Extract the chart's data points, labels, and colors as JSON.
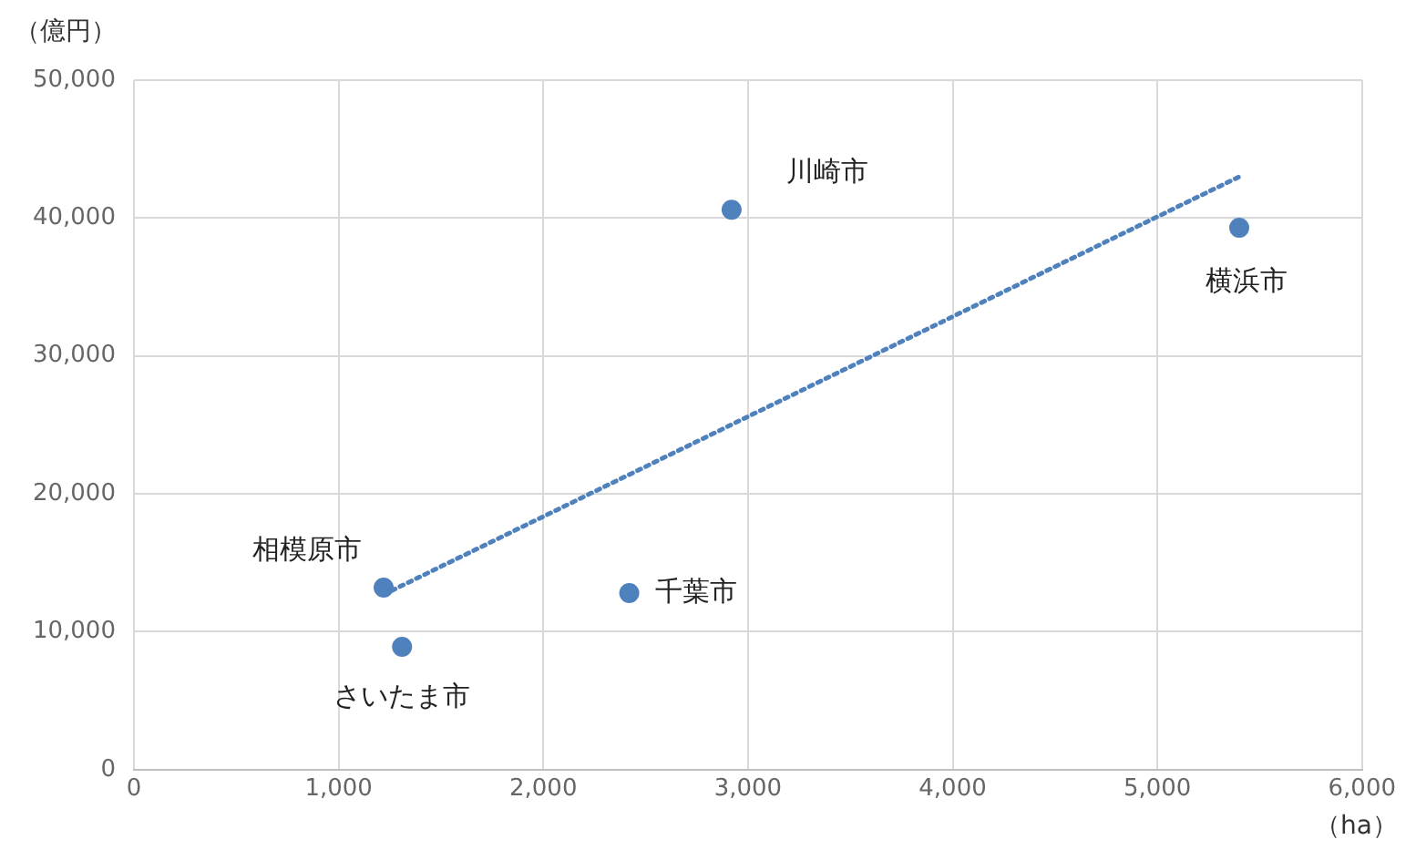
{
  "chart_data": {
    "type": "scatter",
    "xlabel": "（ha）",
    "ylabel": "（億円）",
    "xlim": [
      0,
      6000
    ],
    "xticks": [
      {
        "value": 0,
        "label": "0"
      },
      {
        "value": 1000,
        "label": "1,000"
      },
      {
        "value": 2000,
        "label": "2,000"
      },
      {
        "value": 3000,
        "label": "3,000"
      },
      {
        "value": 4000,
        "label": "4,000"
      },
      {
        "value": 5000,
        "label": "5,000"
      },
      {
        "value": 6000,
        "label": "6,000"
      }
    ],
    "ylim": [
      0,
      50000
    ],
    "yticks": [
      {
        "value": 0,
        "label": "0"
      },
      {
        "value": 10000,
        "label": "10,000"
      },
      {
        "value": 20000,
        "label": "20,000"
      },
      {
        "value": 30000,
        "label": "30,000"
      },
      {
        "value": 40000,
        "label": "40,000"
      },
      {
        "value": 50000,
        "label": "50,000"
      }
    ],
    "grid": true,
    "legend": false,
    "marker": "circle",
    "series": [
      {
        "type": "scatter",
        "color": "#4f81bd",
        "x": [
          1220,
          1310,
          2420,
          2920,
          5400
        ],
        "values": [
          13200,
          8900,
          12800,
          40600,
          39300
        ]
      },
      {
        "type": "line",
        "color": "#4f81bd",
        "line_style": "dotted",
        "marker": "none",
        "x": [
          1220,
          5400
        ],
        "values": [
          12700,
          43000
        ]
      }
    ],
    "annotations": [
      {
        "text": "相模原市",
        "x": 1220,
        "y": 13200
      },
      {
        "text": "さいたま市",
        "x": 1310,
        "y": 8900
      },
      {
        "text": "千葉市",
        "x": 2420,
        "y": 12800
      },
      {
        "text": "川崎市",
        "x": 2920,
        "y": 40600
      },
      {
        "text": "横浜市",
        "x": 5400,
        "y": 39300
      }
    ]
  }
}
